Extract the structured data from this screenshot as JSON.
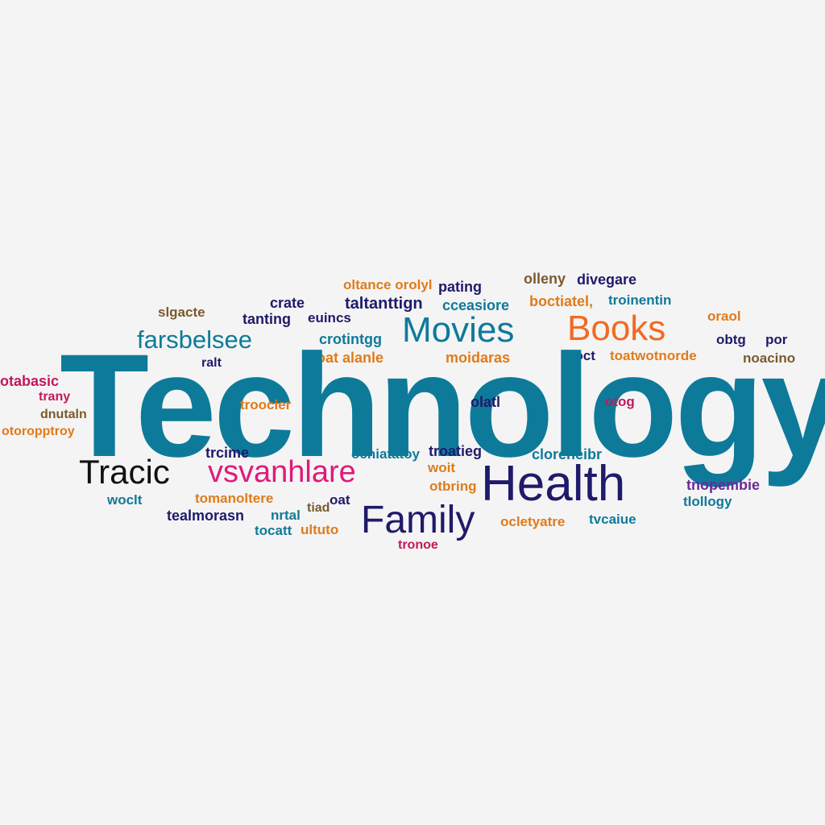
{
  "palette": {
    "teal": "#0e7a9a",
    "orange": "#f26a21",
    "navy": "#1f1a6b",
    "magenta": "#e0197c",
    "black": "#111111",
    "brown": "#7a5a2e",
    "purple": "#6a2a9a",
    "crimson": "#c2185b",
    "gold": "#e07b1a",
    "background": "#f4f4f4"
  },
  "words": [
    {
      "text": "Technology",
      "color": "#0e7a9a"
    },
    {
      "text": "Movies",
      "color": "#0e7a9a"
    },
    {
      "text": "Books",
      "color": "#f26a21"
    },
    {
      "text": "Health",
      "color": "#1f1a6b"
    },
    {
      "text": "Family",
      "color": "#1f1a6b"
    },
    {
      "text": "Tracic",
      "color": "#111111"
    },
    {
      "text": "vsvanhlare",
      "color": "#e0197c"
    },
    {
      "text": "farsbelsee",
      "color": "#0e7a9a"
    },
    {
      "text": "oltance orolyl",
      "color": "#e07b1a"
    },
    {
      "text": "pating",
      "color": "#1f1a6b"
    },
    {
      "text": "olleny",
      "color": "#7a5a2e"
    },
    {
      "text": "divegare",
      "color": "#1f1a6b"
    },
    {
      "text": "crate",
      "color": "#1f1a6b"
    },
    {
      "text": "taltanttign",
      "color": "#1f1a6b"
    },
    {
      "text": "cceasiore",
      "color": "#0e7a9a"
    },
    {
      "text": "boctiatel,",
      "color": "#e07b1a"
    },
    {
      "text": "troinentin",
      "color": "#0e7a9a"
    },
    {
      "text": "oraol",
      "color": "#e07b1a"
    },
    {
      "text": "slgacte",
      "color": "#7a5a2e"
    },
    {
      "text": "tanting",
      "color": "#1f1a6b"
    },
    {
      "text": "euincs",
      "color": "#1f1a6b"
    },
    {
      "text": "crotintgg",
      "color": "#0e7a9a"
    },
    {
      "text": "obtg",
      "color": "#1f1a6b"
    },
    {
      "text": "por",
      "color": "#1f1a6b"
    },
    {
      "text": "ralt",
      "color": "#1f1a6b"
    },
    {
      "text": "oat alanle",
      "color": "#e07b1a"
    },
    {
      "text": "moidaras",
      "color": "#e07b1a"
    },
    {
      "text": "boct",
      "color": "#1f1a6b"
    },
    {
      "text": "toatwotnorde",
      "color": "#e07b1a"
    },
    {
      "text": "noacino",
      "color": "#7a5a2e"
    },
    {
      "text": "otabasic",
      "color": "#c2185b"
    },
    {
      "text": "trany",
      "color": "#c2185b"
    },
    {
      "text": "dnutaln",
      "color": "#7a5a2e"
    },
    {
      "text": "otoropptroy",
      "color": "#e07b1a"
    },
    {
      "text": "troocier",
      "color": "#e07b1a"
    },
    {
      "text": "olatl",
      "color": "#1f1a6b"
    },
    {
      "text": "otog",
      "color": "#c2185b"
    },
    {
      "text": "trcime",
      "color": "#1f1a6b"
    },
    {
      "text": "ochiatatoy",
      "color": "#0e7a9a"
    },
    {
      "text": "troatieg",
      "color": "#1f1a6b"
    },
    {
      "text": "cloreneibr",
      "color": "#0e7a9a"
    },
    {
      "text": "woit",
      "color": "#e07b1a"
    },
    {
      "text": "otbring",
      "color": "#e07b1a"
    },
    {
      "text": "woclt",
      "color": "#0e7a9a"
    },
    {
      "text": "tomanoltere",
      "color": "#e07b1a"
    },
    {
      "text": "oat",
      "color": "#1f1a6b"
    },
    {
      "text": "tealmorasn",
      "color": "#1f1a6b"
    },
    {
      "text": "nrtal",
      "color": "#0e7a9a"
    },
    {
      "text": "tiad",
      "color": "#7a5a2e"
    },
    {
      "text": "tocatt",
      "color": "#0e7a9a"
    },
    {
      "text": "ultuto",
      "color": "#e07b1a"
    },
    {
      "text": "ocletyatre",
      "color": "#e07b1a"
    },
    {
      "text": "tvcaiue",
      "color": "#0e7a9a"
    },
    {
      "text": "tnopembie",
      "color": "#6a2a9a"
    },
    {
      "text": "tlollogy",
      "color": "#0e7a9a"
    },
    {
      "text": "tronoe",
      "color": "#c2185b"
    }
  ]
}
